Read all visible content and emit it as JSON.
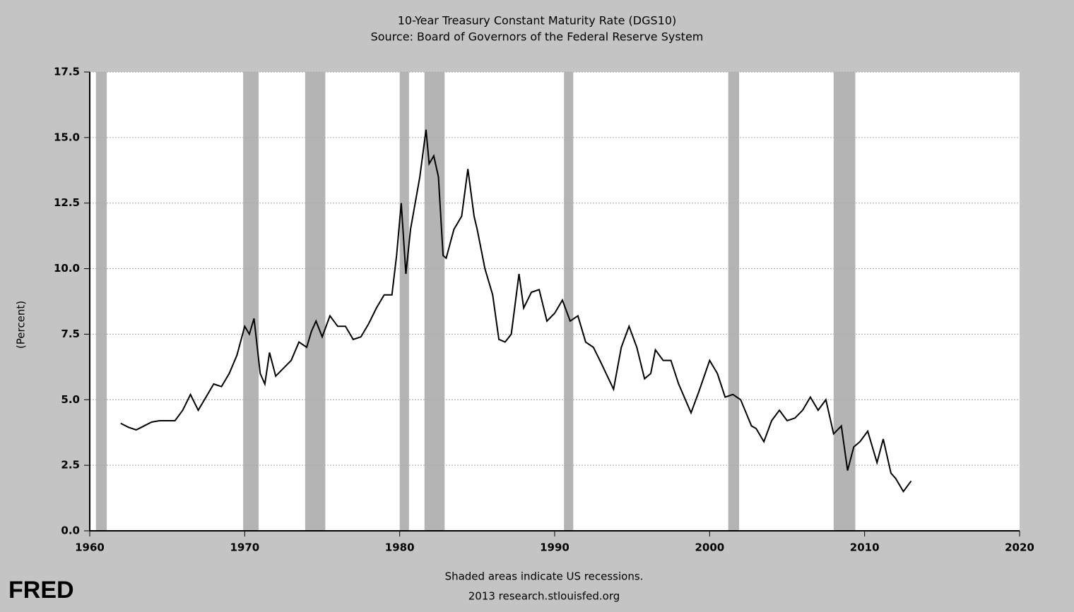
{
  "chart_data": {
    "type": "line",
    "title": "10-Year Treasury Constant Maturity Rate (DGS10)",
    "subtitle": "Source: Board of Governors of the Federal Reserve System",
    "ylabel": "(Percent)",
    "footer": [
      "Shaded areas indicate US recessions.",
      "2013 research.stlouisfed.org"
    ],
    "logo": "FRED",
    "xlim": [
      1960,
      2020
    ],
    "xticks": [
      1960,
      1970,
      1980,
      1990,
      2000,
      2010,
      2020
    ],
    "ylim": [
      0,
      17.5
    ],
    "yticks": [
      {
        "value": 0,
        "label": "0.0"
      },
      2.5,
      {
        "value": 5,
        "label": "5.0"
      },
      7.5,
      {
        "value": 10,
        "label": "10.0"
      },
      12.5,
      {
        "value": 15,
        "label": "15.0"
      },
      17.5
    ],
    "grid": true,
    "recession_color": "#b4b4b4",
    "recessions": [
      {
        "start": 1960.4,
        "end": 1961.1
      },
      {
        "start": 1969.9,
        "end": 1970.9
      },
      {
        "start": 1973.9,
        "end": 1975.2
      },
      {
        "start": 1980.0,
        "end": 1980.6
      },
      {
        "start": 1981.6,
        "end": 1982.9
      },
      {
        "start": 1990.6,
        "end": 1991.2
      },
      {
        "start": 2001.2,
        "end": 2001.9
      },
      {
        "start": 2008.0,
        "end": 2009.4
      }
    ],
    "x": [
      1962.0,
      1962.5,
      1963.0,
      1963.5,
      1964.0,
      1964.5,
      1965.0,
      1965.5,
      1966.0,
      1966.5,
      1967.0,
      1967.5,
      1968.0,
      1968.5,
      1969.0,
      1969.5,
      1970.0,
      1970.3,
      1970.6,
      1971.0,
      1971.3,
      1971.6,
      1972.0,
      1972.5,
      1973.0,
      1973.5,
      1974.0,
      1974.3,
      1974.6,
      1975.0,
      1975.5,
      1976.0,
      1976.5,
      1977.0,
      1977.5,
      1978.0,
      1978.5,
      1979.0,
      1979.5,
      1979.8,
      1980.1,
      1980.4,
      1980.7,
      1981.0,
      1981.3,
      1981.7,
      1981.9,
      1982.2,
      1982.5,
      1982.8,
      1983.0,
      1983.5,
      1984.0,
      1984.4,
      1984.8,
      1985.0,
      1985.5,
      1986.0,
      1986.4,
      1986.8,
      1987.2,
      1987.7,
      1988.0,
      1988.5,
      1989.0,
      1989.5,
      1990.0,
      1990.5,
      1991.0,
      1991.5,
      1992.0,
      1992.5,
      1993.0,
      1993.8,
      1994.3,
      1994.8,
      1995.3,
      1995.8,
      1996.2,
      1996.5,
      1997.0,
      1997.5,
      1998.0,
      1998.8,
      1999.3,
      2000.0,
      2000.5,
      2001.0,
      2001.5,
      2002.0,
      2002.7,
      2003.0,
      2003.5,
      2004.0,
      2004.5,
      2005.0,
      2005.5,
      2006.0,
      2006.5,
      2007.0,
      2007.5,
      2008.0,
      2008.5,
      2008.9,
      2009.3,
      2009.7,
      2010.2,
      2010.8,
      2011.2,
      2011.7,
      2012.0,
      2012.5,
      2013.0
    ],
    "series": [
      {
        "name": "DGS10",
        "color": "#000000",
        "values": [
          4.1,
          3.95,
          3.85,
          4.0,
          4.15,
          4.2,
          4.2,
          4.2,
          4.6,
          5.2,
          4.6,
          5.1,
          5.6,
          5.5,
          6.0,
          6.7,
          7.8,
          7.5,
          8.1,
          6.0,
          5.6,
          6.8,
          5.9,
          6.2,
          6.5,
          7.2,
          7.0,
          7.6,
          8.0,
          7.4,
          8.2,
          7.8,
          7.8,
          7.3,
          7.4,
          7.9,
          8.5,
          9.0,
          9.0,
          10.5,
          12.5,
          9.8,
          11.5,
          12.5,
          13.5,
          15.3,
          14.0,
          14.3,
          13.5,
          10.5,
          10.4,
          11.5,
          12.0,
          13.8,
          12.0,
          11.5,
          10.0,
          9.0,
          7.3,
          7.2,
          7.5,
          9.8,
          8.5,
          9.1,
          9.2,
          8.0,
          8.3,
          8.8,
          8.0,
          8.2,
          7.2,
          7.0,
          6.4,
          5.4,
          7.0,
          7.8,
          7.0,
          5.8,
          6.0,
          6.9,
          6.5,
          6.5,
          5.6,
          4.5,
          5.3,
          6.5,
          6.0,
          5.1,
          5.2,
          5.0,
          4.0,
          3.9,
          3.4,
          4.2,
          4.6,
          4.2,
          4.3,
          4.6,
          5.1,
          4.6,
          5.0,
          3.7,
          4.0,
          2.3,
          3.2,
          3.4,
          3.8,
          2.6,
          3.5,
          2.2,
          2.0,
          1.5,
          1.9
        ]
      }
    ]
  }
}
